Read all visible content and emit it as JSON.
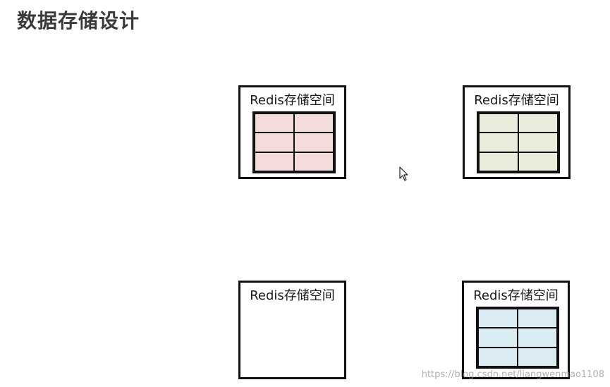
{
  "title": "数据存储设计",
  "boxes": [
    {
      "label": "Redis存储空间",
      "fill": "#f3dcda",
      "has_table": true
    },
    {
      "label": "Redis存储空间",
      "fill": "#e8eedb",
      "has_table": true
    },
    {
      "label": "Redis存储空间",
      "fill": null,
      "has_table": false
    },
    {
      "label": "Redis存储空间",
      "fill": "#dbebf3",
      "has_table": true
    }
  ],
  "watermark": "https://blog.csdn.net/liangwenmao1108",
  "icons": {
    "cursor": "mouse-pointer-icon"
  }
}
